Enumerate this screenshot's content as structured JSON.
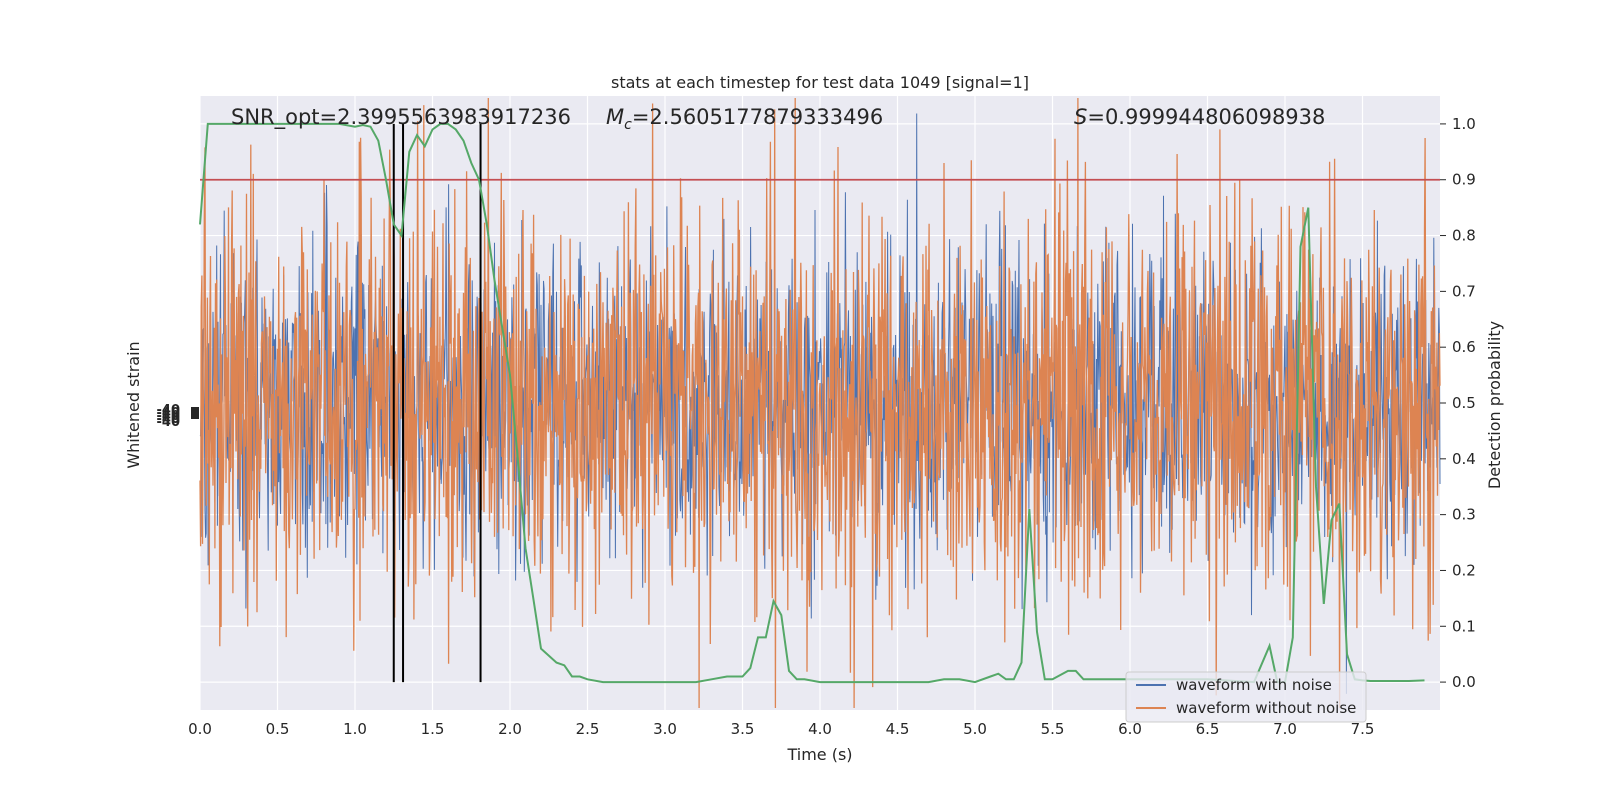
{
  "chart_data": {
    "type": "line",
    "title": "stats at each timestep for test data 1049 [signal=1]",
    "xlabel": "Time (s)",
    "ylabel_left": "Whitened strain",
    "ylabel_right": "Detection probability",
    "xlim": [
      0.0,
      8.0
    ],
    "ylim_right": [
      -0.05,
      1.05
    ],
    "xticks": [
      "0.0",
      "0.5",
      "1.0",
      "1.5",
      "2.0",
      "2.5",
      "3.0",
      "3.5",
      "4.0",
      "4.5",
      "5.0",
      "5.5",
      "6.0",
      "6.5",
      "7.0",
      "7.5"
    ],
    "yticks_right": [
      "0.0",
      "0.1",
      "0.2",
      "0.3",
      "0.4",
      "0.5",
      "0.6",
      "0.7",
      "0.8",
      "0.9",
      "1.0"
    ],
    "left_ytick_labels_overlapping": "-40",
    "annotations": {
      "snr": "SNR_opt=2.3995563983917236",
      "mc_symbol": "M",
      "mc_sub": "c",
      "mc_value": "=2.5605177879333496",
      "s_symbol": "S",
      "s_value": "=0.999944806098938"
    },
    "threshold": 0.9,
    "vlines": [
      1.25,
      1.31,
      1.81
    ],
    "legend": {
      "position": "lower-right",
      "entries": [
        "waveform with noise",
        "waveform without noise"
      ]
    },
    "colors": {
      "background": "#eaeaf2",
      "grid": "#ffffff",
      "with_noise": "#4c72b0",
      "without_noise": "#dd8452",
      "probability": "#55a868",
      "threshold": "#c44e52",
      "vline": "#000000"
    },
    "series": [
      {
        "name": "waveform with noise",
        "description": "noise-like strain trace, mostly hidden behind the orange trace"
      },
      {
        "name": "waveform without noise",
        "description": "dense strain trace oscillating around the centre of the panel"
      },
      {
        "name": "",
        "axis": "right",
        "x": [
          0.0,
          0.05,
          0.1,
          0.2,
          0.3,
          0.4,
          0.5,
          0.6,
          0.7,
          0.8,
          0.9,
          1.0,
          1.05,
          1.1,
          1.15,
          1.2,
          1.25,
          1.3,
          1.35,
          1.4,
          1.45,
          1.5,
          1.55,
          1.6,
          1.65,
          1.7,
          1.75,
          1.8,
          1.85,
          1.9,
          2.0,
          2.05,
          2.1,
          2.15,
          2.2,
          2.3,
          2.35,
          2.4,
          2.45,
          2.5,
          2.6,
          2.7,
          3.0,
          3.2,
          3.3,
          3.4,
          3.5,
          3.55,
          3.6,
          3.65,
          3.7,
          3.75,
          3.8,
          3.85,
          3.9,
          4.0,
          4.1,
          4.5,
          4.7,
          4.8,
          4.9,
          5.0,
          5.1,
          5.15,
          5.2,
          5.25,
          5.3,
          5.35,
          5.4,
          5.45,
          5.5,
          5.6,
          5.65,
          5.7,
          5.75,
          5.8,
          5.9,
          6.0,
          6.5,
          6.8,
          6.9,
          6.95,
          7.0,
          7.05,
          7.1,
          7.15,
          7.2,
          7.25,
          7.3,
          7.35,
          7.4,
          7.45,
          7.5,
          7.55,
          7.6,
          7.7,
          7.8,
          7.9
        ],
        "y": [
          0.82,
          1.0,
          1.0,
          1.0,
          1.0,
          1.0,
          1.0,
          1.0,
          1.0,
          1.0,
          1.0,
          0.995,
          0.998,
          0.995,
          0.97,
          0.9,
          0.82,
          0.8,
          0.95,
          0.98,
          0.96,
          0.99,
          1.0,
          1.0,
          0.99,
          0.97,
          0.93,
          0.9,
          0.82,
          0.72,
          0.55,
          0.4,
          0.24,
          0.15,
          0.06,
          0.035,
          0.03,
          0.01,
          0.01,
          0.005,
          0.0,
          0.0,
          0.0,
          0.0,
          0.005,
          0.01,
          0.01,
          0.025,
          0.08,
          0.08,
          0.145,
          0.12,
          0.02,
          0.005,
          0.005,
          0.0,
          0.0,
          0.0,
          0.0,
          0.005,
          0.005,
          0.0,
          0.01,
          0.015,
          0.005,
          0.005,
          0.035,
          0.31,
          0.09,
          0.005,
          0.005,
          0.02,
          0.02,
          0.005,
          0.005,
          0.005,
          0.005,
          0.005,
          0.005,
          0.0,
          0.065,
          0.0,
          0.0,
          0.08,
          0.78,
          0.85,
          0.35,
          0.14,
          0.29,
          0.32,
          0.05,
          0.005,
          0.003,
          0.002,
          0.002,
          0.002,
          0.002,
          0.003
        ]
      }
    ]
  }
}
